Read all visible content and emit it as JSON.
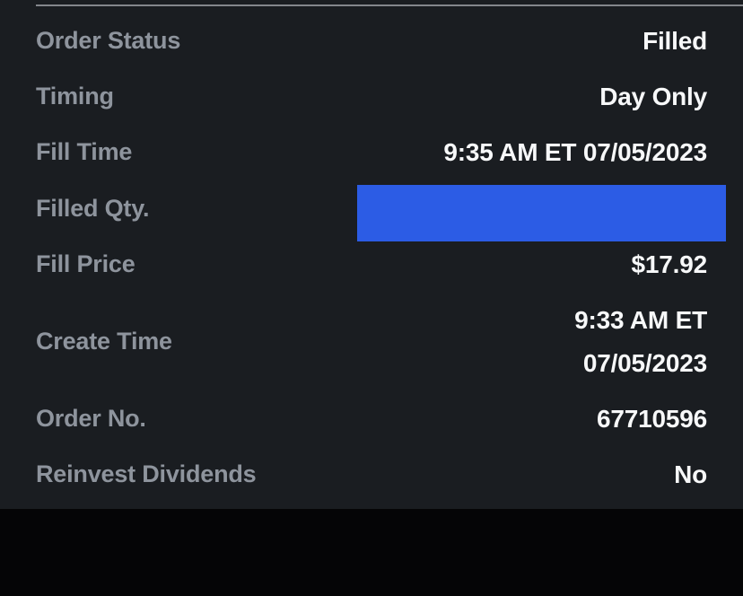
{
  "theme": {
    "panel_bg": "#1a1d21",
    "void_bg": "#050506",
    "label_color": "#8e949d",
    "value_color": "#f7f8f9",
    "divider_color": "#83868b",
    "redaction_color": "#2c5ce5"
  },
  "order_details": {
    "rows": [
      {
        "label": "Order Status",
        "value": "Filled"
      },
      {
        "label": "Timing",
        "value": "Day Only"
      },
      {
        "label": "Fill Time",
        "value": "9:35 AM ET 07/05/2023"
      },
      {
        "label": "Filled Qty.",
        "value": "",
        "redacted": true
      },
      {
        "label": "Fill Price",
        "value": "$17.92"
      },
      {
        "label": "Create Time",
        "value": "9:33 AM ET\n07/05/2023"
      },
      {
        "label": "Order No.",
        "value": "67710596"
      },
      {
        "label": "Reinvest Dividends",
        "value": "No"
      }
    ]
  }
}
